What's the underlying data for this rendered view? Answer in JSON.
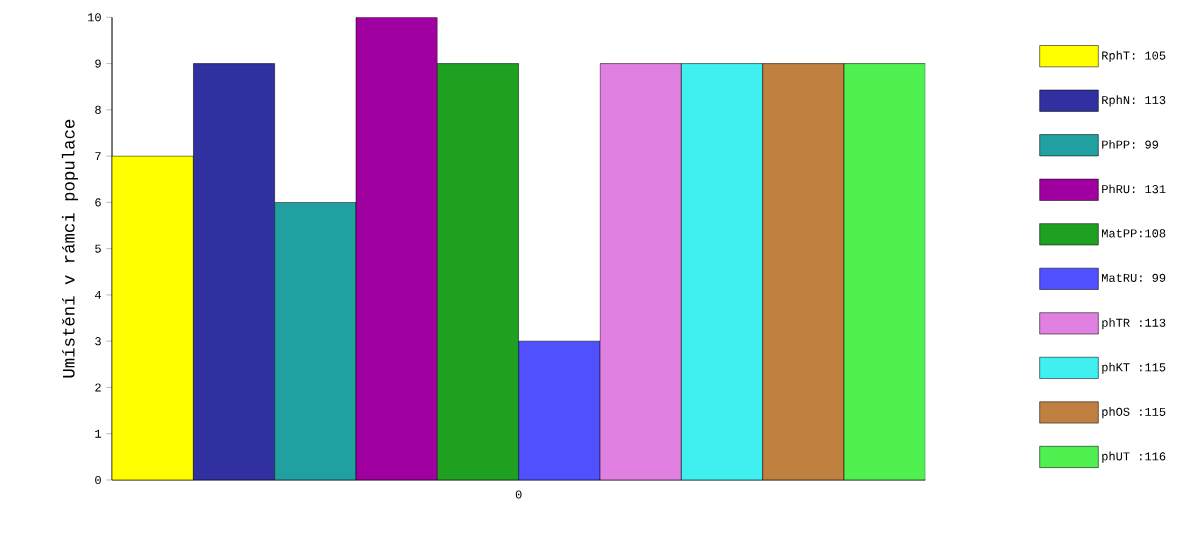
{
  "chart_data": {
    "type": "bar",
    "ylabel": "Umístění v rámci populace",
    "categories": [
      "0"
    ],
    "ylim": [
      0,
      10
    ],
    "yticks": [
      0,
      1,
      2,
      3,
      4,
      5,
      6,
      7,
      8,
      9,
      10
    ],
    "legend": "right",
    "series": [
      {
        "name": "RphT: 105",
        "color": "#ffff00",
        "values": [
          7
        ]
      },
      {
        "name": "RphN: 113",
        "color": "#3030a0",
        "values": [
          9
        ]
      },
      {
        "name": "PhPP: 99",
        "color": "#20a0a0",
        "values": [
          6
        ]
      },
      {
        "name": "PhRU: 131",
        "color": "#a000a0",
        "values": [
          10
        ]
      },
      {
        "name": "MatPP:108",
        "color": "#20a020",
        "values": [
          9
        ]
      },
      {
        "name": "MatRU: 99",
        "color": "#5050ff",
        "values": [
          3
        ]
      },
      {
        "name": "phTR :113",
        "color": "#e080e0",
        "values": [
          9
        ]
      },
      {
        "name": "phKT :115",
        "color": "#40f0f0",
        "values": [
          9
        ]
      },
      {
        "name": "phOS :115",
        "color": "#c08040",
        "values": [
          9
        ]
      },
      {
        "name": "phUT :116",
        "color": "#50f050",
        "values": [
          9
        ]
      }
    ]
  }
}
